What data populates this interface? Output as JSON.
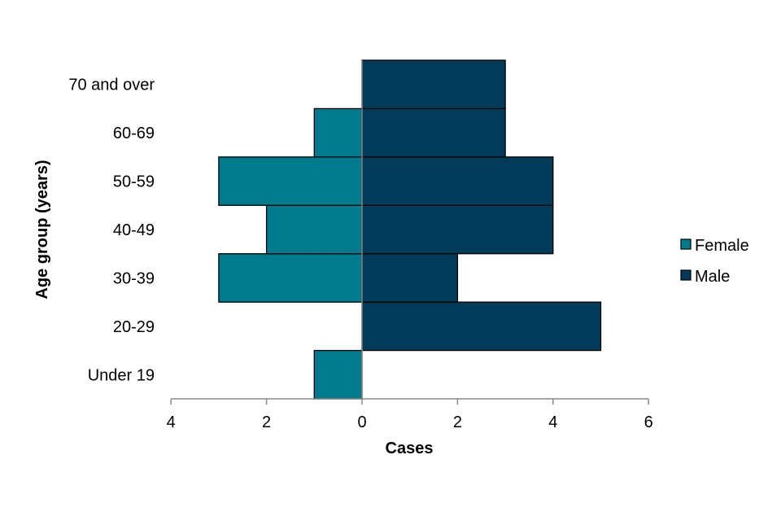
{
  "chart_data": {
    "type": "bar",
    "orientation": "horizontal",
    "title": "",
    "xlabel": "Cases",
    "ylabel": "Age group (years)",
    "categories": [
      "Under 19",
      "20-29",
      "30-39",
      "40-49",
      "50-59",
      "60-69",
      "70 and over"
    ],
    "series": [
      {
        "name": "Female",
        "values": [
          1,
          0,
          3,
          2,
          3,
          1,
          0
        ],
        "color": "#007B8D",
        "direction": "left"
      },
      {
        "name": "Male",
        "values": [
          0,
          5,
          2,
          4,
          4,
          3,
          3
        ],
        "color": "#023B5A",
        "direction": "right"
      }
    ],
    "xlim": [
      -4,
      6
    ],
    "xticks": [
      {
        "value": -4,
        "label": "4"
      },
      {
        "value": -2,
        "label": "2"
      },
      {
        "value": 0,
        "label": "0"
      },
      {
        "value": 2,
        "label": "2"
      },
      {
        "value": 4,
        "label": "4"
      },
      {
        "value": 6,
        "label": "6"
      }
    ],
    "grid": false,
    "legend": "right"
  }
}
